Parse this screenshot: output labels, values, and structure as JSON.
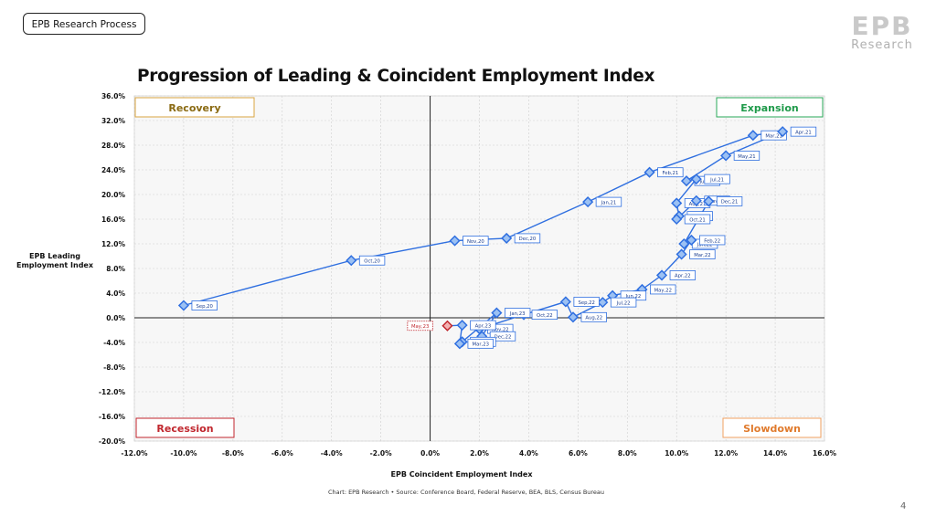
{
  "header": {
    "tag_label": "EPB Research Process",
    "logo_mark": "EPB",
    "logo_sub": "Research",
    "page_number": "4"
  },
  "chart_data": {
    "type": "scatter",
    "title": "Progression of Leading & Coincident Employment Index",
    "xlabel": "EPB Coincident Employment Index",
    "ylabel_line1": "EPB Leading",
    "ylabel_line2": "Employment Index",
    "source": "Chart: EPB Research  •  Source: Conference Board, Federal Reserve, BEA, BLS, Census Bureau",
    "xlim": [
      -12,
      16
    ],
    "ylim": [
      -20,
      36
    ],
    "x_ticks": [
      -12,
      -10,
      -8,
      -6,
      -4,
      -2,
      0,
      2,
      4,
      6,
      8,
      10,
      12,
      14,
      16
    ],
    "y_ticks": [
      -20,
      -16,
      -12,
      -8,
      -4,
      0,
      4,
      8,
      12,
      16,
      20,
      24,
      28,
      32,
      36
    ],
    "x_tick_labels": [
      "-12.0%",
      "-10.0%",
      "-8.0%",
      "-6.0%",
      "-4.0%",
      "-2.0%",
      "0.0%",
      "2.0%",
      "4.0%",
      "6.0%",
      "8.0%",
      "10.0%",
      "12.0%",
      "14.0%",
      "16.0%"
    ],
    "y_tick_labels": [
      "-20.0%",
      "-16.0%",
      "-12.0%",
      "-8.0%",
      "-4.0%",
      "0.0%",
      "4.0%",
      "8.0%",
      "12.0%",
      "16.0%",
      "20.0%",
      "24.0%",
      "28.0%",
      "32.0%",
      "36.0%"
    ],
    "grid": true,
    "quadrants": [
      {
        "label": "Recovery",
        "position": "top-left",
        "color": "#8a6a12",
        "border": "#d9a441"
      },
      {
        "label": "Expansion",
        "position": "top-right",
        "color": "#1f9a4a",
        "border": "#2aa858"
      },
      {
        "label": "Recession",
        "position": "bottom-left",
        "color": "#c0262d",
        "border": "#c0262d"
      },
      {
        "label": "Slowdown",
        "position": "bottom-right",
        "color": "#e07a2c",
        "border": "#f0a060"
      }
    ],
    "colors": {
      "series": "#2f6fe0",
      "marker_fill": "#9cc1f3",
      "latest": "#c0262d",
      "latest_fill": "#f3b2b2"
    },
    "points": [
      {
        "label": "Sep,20",
        "x": -10.0,
        "y": 2.0
      },
      {
        "label": "Oct,20",
        "x": -3.2,
        "y": 9.3
      },
      {
        "label": "Nov,20",
        "x": 1.0,
        "y": 12.5
      },
      {
        "label": "Dec,20",
        "x": 3.1,
        "y": 12.9
      },
      {
        "label": "Jan,21",
        "x": 6.4,
        "y": 18.8
      },
      {
        "label": "Feb,21",
        "x": 8.9,
        "y": 23.6
      },
      {
        "label": "Mar,21",
        "x": 13.1,
        "y": 29.6
      },
      {
        "label": "Apr,21",
        "x": 14.3,
        "y": 30.2
      },
      {
        "label": "May,21",
        "x": 12.0,
        "y": 26.3
      },
      {
        "label": "Jun,21",
        "x": 10.4,
        "y": 22.2
      },
      {
        "label": "Jul,21",
        "x": 10.8,
        "y": 22.5
      },
      {
        "label": "Aug,21",
        "x": 10.0,
        "y": 18.6
      },
      {
        "label": "Sep,21",
        "x": 10.1,
        "y": 16.5
      },
      {
        "label": "Oct,21",
        "x": 10.0,
        "y": 16.0
      },
      {
        "label": "Nov,21",
        "x": 10.8,
        "y": 19.0
      },
      {
        "label": "Dec,21",
        "x": 11.3,
        "y": 18.9
      },
      {
        "label": "Jan,22",
        "x": 10.3,
        "y": 12.0
      },
      {
        "label": "Feb,22",
        "x": 10.6,
        "y": 12.6
      },
      {
        "label": "Mar,22",
        "x": 10.2,
        "y": 10.3
      },
      {
        "label": "Apr,22",
        "x": 9.4,
        "y": 6.9
      },
      {
        "label": "May,22",
        "x": 8.6,
        "y": 4.6
      },
      {
        "label": "Jun,22",
        "x": 7.4,
        "y": 3.6
      },
      {
        "label": "Jul,22",
        "x": 7.0,
        "y": 2.5
      },
      {
        "label": "Aug,22",
        "x": 5.8,
        "y": 0.1
      },
      {
        "label": "Sep,22",
        "x": 5.5,
        "y": 2.6
      },
      {
        "label": "Oct,22",
        "x": 3.8,
        "y": 0.5
      },
      {
        "label": "Nov,22",
        "x": 2.0,
        "y": -1.8
      },
      {
        "label": "Dec,22",
        "x": 2.1,
        "y": -3.0
      },
      {
        "label": "Jan,23",
        "x": 2.7,
        "y": 0.8
      },
      {
        "label": "Feb,23",
        "x": 1.3,
        "y": -3.9
      },
      {
        "label": "Mar,23",
        "x": 1.2,
        "y": -4.2
      },
      {
        "label": "Apr,23",
        "x": 1.3,
        "y": -1.2
      },
      {
        "label": "May,23",
        "x": 0.7,
        "y": -1.3,
        "latest": true
      }
    ]
  }
}
